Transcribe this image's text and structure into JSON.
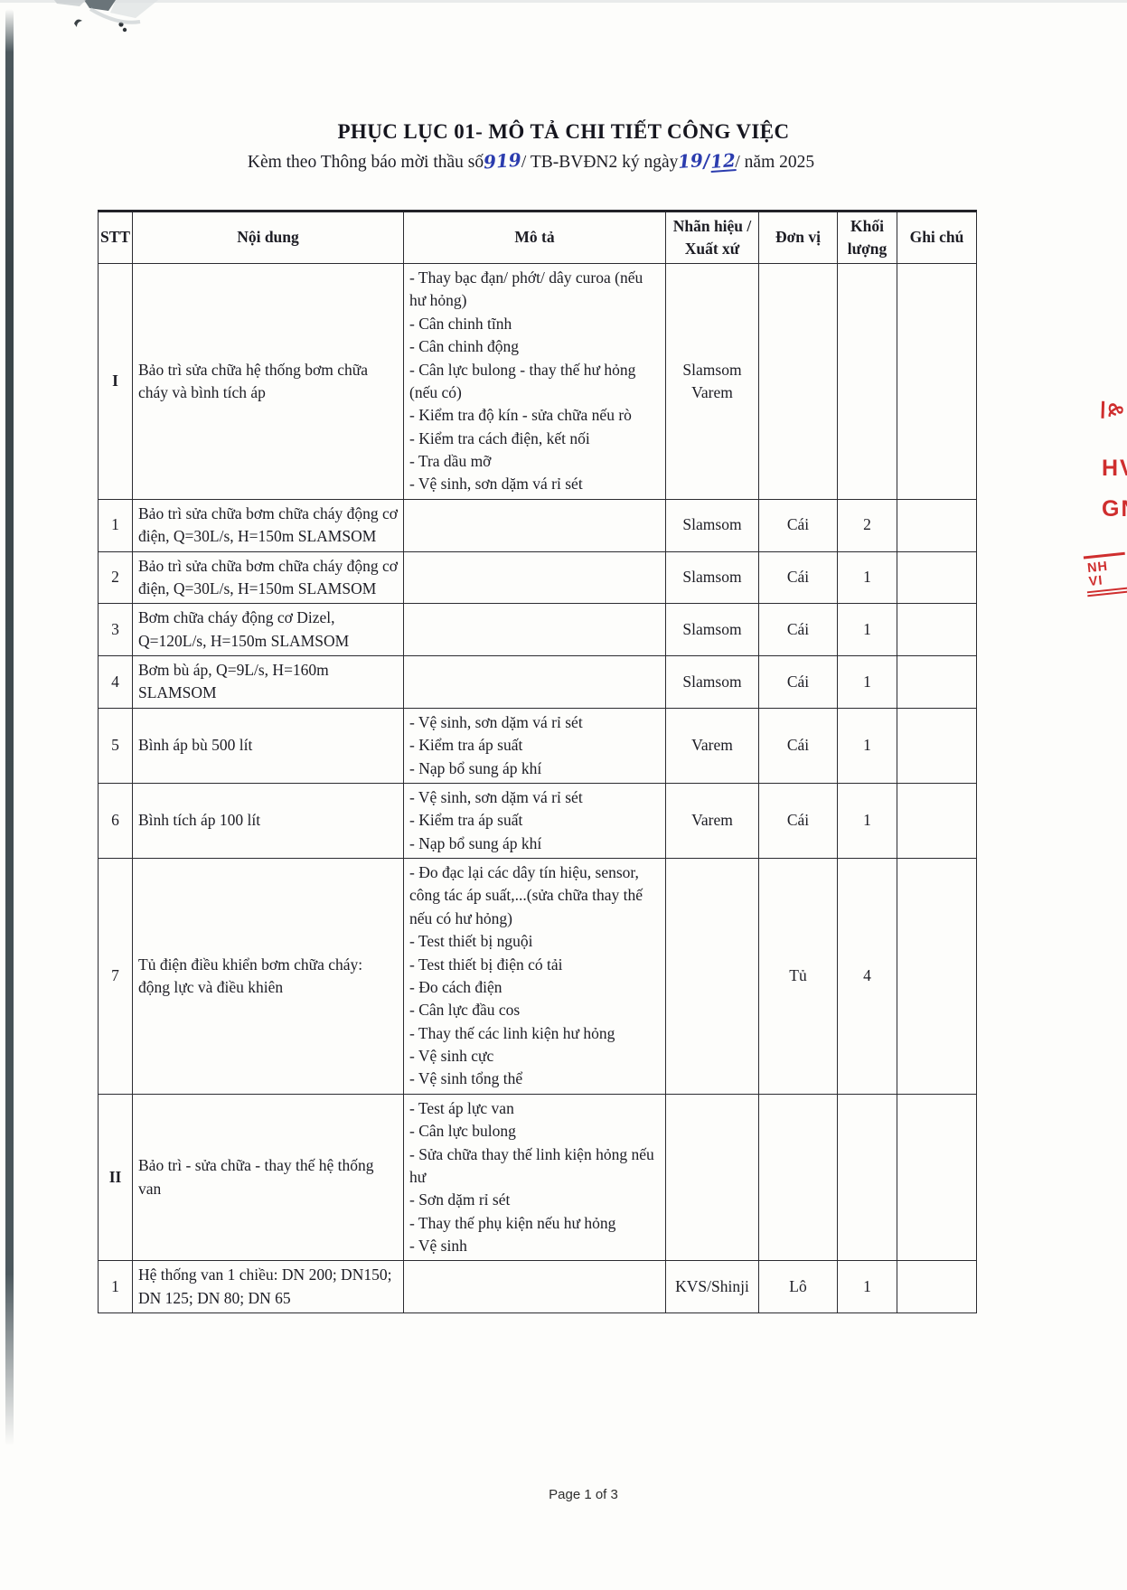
{
  "document": {
    "title": "PHỤC LỤC 01- MÔ TẢ CHI TIẾT CÔNG VIỆC",
    "subtitle_pre": "Kèm theo Thông báo mời thầu số",
    "handwritten_number": "919",
    "subtitle_mid": "/ TB-BVĐN2 ký ngày",
    "handwritten_day": "19",
    "handwritten_separator": "/",
    "handwritten_month": "12",
    "subtitle_post": "/ năm 2025"
  },
  "colors": {
    "stamp_red": "#cf2e2e",
    "handwriting_blue": "#2b3cae"
  },
  "table": {
    "headers": [
      "STT",
      "Nội dung",
      "Mô tả",
      "Nhãn hiệu /\nXuất xứ",
      "Đơn vị",
      "Khối\nlượng",
      "Ghi chú"
    ],
    "rows": [
      {
        "stt": "I",
        "section": true,
        "noi_dung": "Bảo trì sửa chữa hệ thống bơm chữa cháy và bình tích áp",
        "mo_ta": [
          "- Thay bạc đạn/ phớt/ dây curoa (nếu hư hỏng)",
          "- Cân chinh tĩnh",
          "- Cân chinh động",
          "- Cân lực bulong - thay thế hư hỏng (nếu có)",
          "- Kiểm tra độ kín - sửa chữa nếu rò",
          "- Kiểm tra cách điện, kết nối",
          "- Tra dầu mỡ",
          "- Vệ sinh, sơn dặm vá rỉ sét"
        ],
        "nhan_hieu": "Slamsom\nVarem",
        "don_vi": "",
        "khoi_luong": "",
        "ghi_chu": ""
      },
      {
        "stt": "1",
        "section": false,
        "noi_dung": "Bảo trì sửa chữa bơm chữa cháy động cơ điện, Q=30L/s, H=150m SLAMSOM",
        "mo_ta": [],
        "nhan_hieu": "Slamsom",
        "don_vi": "Cái",
        "khoi_luong": "2",
        "ghi_chu": ""
      },
      {
        "stt": "2",
        "section": false,
        "noi_dung": "Bảo trì sửa chữa bơm chữa cháy động cơ điện, Q=30L/s, H=150m SLAMSOM",
        "mo_ta": [],
        "nhan_hieu": "Slamsom",
        "don_vi": "Cái",
        "khoi_luong": "1",
        "ghi_chu": ""
      },
      {
        "stt": "3",
        "section": false,
        "noi_dung": "Bơm chữa cháy động cơ Dizel, Q=120L/s, H=150m SLAMSOM",
        "mo_ta": [],
        "nhan_hieu": "Slamsom",
        "don_vi": "Cái",
        "khoi_luong": "1",
        "ghi_chu": ""
      },
      {
        "stt": "4",
        "section": false,
        "noi_dung": "Bơm bù áp, Q=9L/s, H=160m SLAMSOM",
        "mo_ta": [],
        "nhan_hieu": "Slamsom",
        "don_vi": "Cái",
        "khoi_luong": "1",
        "ghi_chu": ""
      },
      {
        "stt": "5",
        "section": false,
        "noi_dung": "Bình áp bù 500 lít",
        "mo_ta": [
          "- Vệ sinh, sơn dặm vá rỉ sét",
          "- Kiểm tra áp suất",
          "- Nạp bổ sung áp khí"
        ],
        "nhan_hieu": "Varem",
        "don_vi": "Cái",
        "khoi_luong": "1",
        "ghi_chu": ""
      },
      {
        "stt": "6",
        "section": false,
        "noi_dung": "Bình tích áp 100 lít",
        "mo_ta": [
          "- Vệ sinh, sơn dặm vá rỉ sét",
          "- Kiểm tra áp suất",
          "- Nạp bổ sung áp khí"
        ],
        "nhan_hieu": "Varem",
        "don_vi": "Cái",
        "khoi_luong": "1",
        "ghi_chu": ""
      },
      {
        "stt": "7",
        "section": false,
        "noi_dung": "Tủ điện điều khiển bơm chữa cháy: động lực và điều khiên",
        "mo_ta": [
          "- Đo đạc lại các dây tín hiệu, sensor, công tác áp suất,...(sửa chữa thay thế nếu có hư hỏng)",
          "- Test thiết bị nguội",
          "- Test thiết bị điện có tải",
          "- Đo cách điện",
          "- Cân lực đầu cos",
          "- Thay thế các linh kiện hư hỏng",
          "- Vệ sinh cực",
          "- Vệ sinh tổng thể"
        ],
        "nhan_hieu": "",
        "don_vi": "Tủ",
        "khoi_luong": "4",
        "ghi_chu": ""
      },
      {
        "stt": "II",
        "section": true,
        "noi_dung": "Bảo trì - sửa chữa - thay thế hệ thống van",
        "mo_ta": [
          "- Test áp lực van",
          "- Cân lực bulong",
          "- Sửa chữa thay thế linh kiện hỏng nếu hư",
          "- Sơn dặm rỉ sét",
          "- Thay thế phụ kiện nếu hư hỏng",
          "- Vệ sinh"
        ],
        "nhan_hieu": "",
        "don_vi": "",
        "khoi_luong": "",
        "ghi_chu": ""
      },
      {
        "stt": "1",
        "section": false,
        "noi_dung": "Hệ thống van 1 chiều: DN 200; DN150; DN 125; DN 80; DN 65",
        "mo_ta": [],
        "nhan_hieu": "KVS/Shinji",
        "don_vi": "Lô",
        "khoi_luong": "1",
        "ghi_chu": ""
      }
    ]
  },
  "stamp": {
    "fragments": [
      "&",
      "HV",
      "GN",
      "NH VI"
    ]
  },
  "footer": {
    "page_label": "Page 1 of 3"
  }
}
